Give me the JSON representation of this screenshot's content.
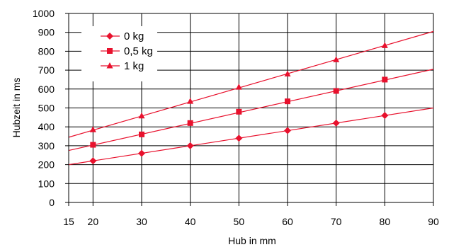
{
  "chart_data": {
    "type": "line",
    "title": "",
    "xlabel": "Hub in mm",
    "ylabel": "Hubzeit in ms",
    "xlim": [
      15,
      90
    ],
    "ylim": [
      0,
      1000
    ],
    "x_ticks": [
      15,
      20,
      30,
      40,
      50,
      60,
      70,
      80,
      90
    ],
    "y_ticks": [
      0,
      100,
      200,
      300,
      400,
      500,
      600,
      700,
      800,
      900,
      1000
    ],
    "grid": true,
    "legend_position": "top-left",
    "line_color": "#e8112d",
    "series": [
      {
        "name": "0 kg",
        "marker": "diamond",
        "x": [
          20,
          30,
          40,
          50,
          60,
          70,
          80
        ],
        "y": [
          220,
          260,
          300,
          340,
          380,
          420,
          460
        ],
        "trend": {
          "x": [
            15,
            90
          ],
          "y": [
            200,
            500
          ]
        }
      },
      {
        "name": "0,5 kg",
        "marker": "square",
        "x": [
          20,
          30,
          40,
          50,
          60,
          70,
          80
        ],
        "y": [
          305,
          360,
          420,
          480,
          535,
          590,
          650
        ],
        "trend": {
          "x": [
            15,
            90
          ],
          "y": [
            275,
            705
          ]
        }
      },
      {
        "name": "1 kg",
        "marker": "triangle",
        "x": [
          20,
          30,
          40,
          50,
          60,
          70,
          80
        ],
        "y": [
          385,
          458,
          535,
          610,
          680,
          755,
          830
        ],
        "trend": {
          "x": [
            15,
            90
          ],
          "y": [
            345,
            905
          ]
        }
      }
    ]
  }
}
